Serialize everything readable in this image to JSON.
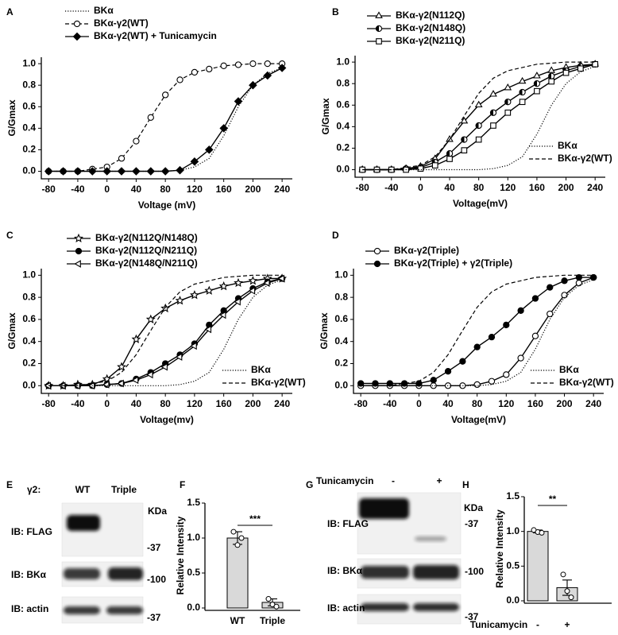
{
  "chart_data": [
    {
      "type": "line",
      "panel_label": "A",
      "ylabel": "G/Gmax",
      "xlabel": "Voltage (mV)",
      "x": [
        -80,
        -60,
        -40,
        -20,
        0,
        20,
        40,
        60,
        80,
        100,
        120,
        140,
        160,
        180,
        200,
        220,
        240
      ],
      "xlim": [
        -90,
        254
      ],
      "xticks": [
        -80,
        -40,
        0,
        40,
        80,
        120,
        160,
        200,
        240
      ],
      "ylim": [
        -0.07,
        1.06
      ],
      "yticks": [
        {
          "value": 0,
          "label": "0.0"
        },
        0.2,
        0.4,
        0.6,
        0.8,
        {
          "value": 1,
          "label": "1.0"
        }
      ],
      "series": [
        {
          "name": "BKα",
          "color": "#000000",
          "line": "dotted",
          "marker": "none",
          "legend": "top",
          "values": [
            0,
            0,
            0,
            0,
            0,
            0,
            0,
            0,
            0,
            0.01,
            0.04,
            0.12,
            0.33,
            0.6,
            0.8,
            0.91,
            0.96
          ]
        },
        {
          "name": "BKα-γ2(WT)",
          "color": "#000000",
          "line": "dashed",
          "marker": "circle-open",
          "legend": "top",
          "values": [
            0,
            0,
            0,
            0.02,
            0.04,
            0.12,
            0.28,
            0.5,
            0.71,
            0.85,
            0.92,
            0.95,
            0.98,
            0.99,
            1,
            1,
            1
          ]
        },
        {
          "name": "BKα-γ2(WT) + Tunicamycin",
          "color": "#000000",
          "line": "solid",
          "marker": "diamond-filled",
          "legend": "top",
          "values": [
            0,
            0,
            0,
            0,
            0,
            0,
            0,
            0,
            0,
            0.01,
            0.09,
            0.2,
            0.4,
            0.65,
            0.8,
            0.89,
            0.96
          ]
        }
      ]
    },
    {
      "type": "line",
      "panel_label": "B",
      "ylabel": "G/Gmax",
      "xlabel": "Voltage(mV)",
      "x": [
        -80,
        -60,
        -40,
        -20,
        0,
        20,
        40,
        60,
        80,
        100,
        120,
        140,
        160,
        180,
        200,
        220,
        240
      ],
      "xlim": [
        -90,
        254
      ],
      "xticks": [
        -80,
        -40,
        0,
        40,
        80,
        120,
        160,
        200,
        240
      ],
      "ylim": [
        -0.07,
        1.06
      ],
      "yticks": [
        {
          "value": 0,
          "label": "0.0"
        },
        0.2,
        0.4,
        0.6,
        0.8,
        {
          "value": 1,
          "label": "1.0"
        }
      ],
      "series": [
        {
          "name": "BKα-γ2(N112Q)",
          "color": "#000000",
          "line": "solid",
          "marker": "triangle-open",
          "legend": "top",
          "values": [
            0,
            0,
            0,
            0.01,
            0.03,
            0.1,
            0.28,
            0.45,
            0.6,
            0.7,
            0.76,
            0.82,
            0.87,
            0.92,
            0.95,
            0.97,
            0.98
          ]
        },
        {
          "name": "BKα-γ2(N148Q)",
          "color": "#000000",
          "line": "solid",
          "marker": "circle-half",
          "legend": "top",
          "values": [
            0,
            0,
            0,
            0.01,
            0.02,
            0.07,
            0.15,
            0.28,
            0.41,
            0.53,
            0.63,
            0.72,
            0.8,
            0.87,
            0.92,
            0.96,
            0.98
          ]
        },
        {
          "name": "BKα-γ2(N211Q)",
          "color": "#000000",
          "line": "solid",
          "marker": "square-open",
          "legend": "top",
          "values": [
            0,
            0,
            0,
            0,
            0.01,
            0.04,
            0.1,
            0.18,
            0.28,
            0.41,
            0.53,
            0.63,
            0.73,
            0.82,
            0.9,
            0.94,
            0.98
          ]
        },
        {
          "name": "BKα",
          "color": "#000000",
          "line": "dotted",
          "marker": "none",
          "legend": "lower right",
          "values": [
            0,
            0,
            0,
            0,
            0,
            0,
            0,
            0,
            0,
            0.01,
            0.04,
            0.12,
            0.33,
            0.6,
            0.8,
            0.91,
            0.96
          ]
        },
        {
          "name": "BKα-γ2(WT)",
          "color": "#000000",
          "line": "dashed",
          "marker": "none",
          "legend": "lower right",
          "values": [
            0,
            0,
            0,
            0.02,
            0.04,
            0.12,
            0.28,
            0.5,
            0.71,
            0.85,
            0.92,
            0.95,
            0.98,
            0.99,
            1,
            1,
            1
          ]
        }
      ]
    },
    {
      "type": "line",
      "panel_label": "C",
      "ylabel": "G/Gmax",
      "xlabel": "Voltage(mv)",
      "x": [
        -80,
        -60,
        -40,
        -20,
        0,
        20,
        40,
        60,
        80,
        100,
        120,
        140,
        160,
        180,
        200,
        220,
        240
      ],
      "xlim": [
        -90,
        254
      ],
      "xticks": [
        -80,
        -40,
        0,
        40,
        80,
        120,
        160,
        200,
        240
      ],
      "ylim": [
        -0.07,
        1.06
      ],
      "yticks": [
        {
          "value": 0,
          "label": "0.0"
        },
        0.2,
        0.4,
        0.6,
        0.8,
        {
          "value": 1,
          "label": "1.0"
        }
      ],
      "series": [
        {
          "name": "BKα-γ2(N112Q/N148Q)",
          "color": "#000000",
          "line": "solid",
          "marker": "star-open",
          "legend": "top",
          "values": [
            0,
            0,
            0.01,
            0.01,
            0.06,
            0.17,
            0.42,
            0.6,
            0.7,
            0.77,
            0.82,
            0.86,
            0.9,
            0.93,
            0.95,
            0.97,
            0.97
          ]
        },
        {
          "name": "BKα-γ2(N112Q/N211Q)",
          "color": "#000000",
          "line": "solid",
          "marker": "circle-filled",
          "legend": "top",
          "values": [
            0,
            0,
            0,
            0,
            0.01,
            0.02,
            0.06,
            0.12,
            0.2,
            0.28,
            0.38,
            0.55,
            0.68,
            0.79,
            0.88,
            0.94,
            0.97
          ]
        },
        {
          "name": "BKα-γ2(N148Q/N211Q)",
          "color": "#000000",
          "line": "solid",
          "marker": "triangle-left-open",
          "legend": "top",
          "values": [
            0,
            0,
            0,
            0,
            0.01,
            0.02,
            0.05,
            0.1,
            0.17,
            0.26,
            0.36,
            0.51,
            0.64,
            0.76,
            0.86,
            0.93,
            0.97
          ]
        },
        {
          "name": "BKα",
          "color": "#000000",
          "line": "dotted",
          "marker": "none",
          "legend": "lower right",
          "values": [
            0,
            0,
            0,
            0,
            0,
            0,
            0,
            0,
            0,
            0.01,
            0.04,
            0.12,
            0.33,
            0.6,
            0.8,
            0.91,
            0.96
          ]
        },
        {
          "name": "BKα-γ2(WT)",
          "color": "#000000",
          "line": "dashed",
          "marker": "none",
          "legend": "lower right",
          "values": [
            0,
            0,
            0,
            0.02,
            0.04,
            0.12,
            0.28,
            0.5,
            0.71,
            0.85,
            0.92,
            0.95,
            0.98,
            0.99,
            1,
            1,
            1
          ]
        }
      ]
    },
    {
      "type": "line",
      "panel_label": "D",
      "ylabel": "G/Gmax",
      "xlabel": "Voltage(mV)",
      "x": [
        -80,
        -60,
        -40,
        -20,
        0,
        20,
        40,
        60,
        80,
        100,
        120,
        140,
        160,
        180,
        200,
        220,
        240
      ],
      "xlim": [
        -90,
        254
      ],
      "xticks": [
        -80,
        -40,
        0,
        40,
        80,
        120,
        160,
        200,
        240
      ],
      "ylim": [
        -0.07,
        1.06
      ],
      "yticks": [
        {
          "value": 0,
          "label": "0.0"
        },
        0.2,
        0.4,
        0.6,
        0.8,
        {
          "value": 1,
          "label": "1.0"
        }
      ],
      "series": [
        {
          "name": "BKα-γ2(Triple)",
          "color": "#000000",
          "line": "solid",
          "marker": "circle-open",
          "legend": "top",
          "values": [
            0,
            0,
            0,
            0,
            0,
            0,
            0,
            0,
            0.01,
            0.04,
            0.1,
            0.25,
            0.45,
            0.65,
            0.82,
            0.93,
            0.98
          ]
        },
        {
          "name": "BKα-γ2(Triple) + γ2(Triple)",
          "color": "#000000",
          "line": "solid",
          "marker": "circle-filled",
          "legend": "top",
          "values": [
            0.02,
            0.02,
            0.02,
            0.02,
            0.02,
            0.05,
            0.13,
            0.22,
            0.35,
            0.44,
            0.55,
            0.68,
            0.79,
            0.89,
            0.95,
            0.98,
            0.98
          ]
        },
        {
          "name": "BKα",
          "color": "#000000",
          "line": "dotted",
          "marker": "none",
          "legend": "lower right",
          "values": [
            0,
            0,
            0,
            0,
            0,
            0,
            0,
            0,
            0,
            0.01,
            0.04,
            0.12,
            0.33,
            0.6,
            0.8,
            0.91,
            0.96
          ]
        },
        {
          "name": "BKα-γ2(WT)",
          "color": "#000000",
          "line": "dashed",
          "marker": "none",
          "legend": "lower right",
          "values": [
            0,
            0,
            0,
            0.02,
            0.04,
            0.12,
            0.28,
            0.5,
            0.71,
            0.85,
            0.92,
            0.95,
            0.98,
            0.99,
            1,
            1,
            1
          ]
        }
      ]
    },
    {
      "type": "bar",
      "panel_label": "F",
      "ylabel": "Relative Intensity",
      "categories": [
        "WT",
        "Triple"
      ],
      "values": [
        1.0,
        0.08
      ],
      "errors": [
        0.09,
        0.05
      ],
      "points": [
        [
          1.09,
          0.9,
          1.0
        ],
        [
          0.13,
          0.05,
          0.02
        ]
      ],
      "color": "#d9d9d9",
      "ylim": [
        0,
        1.5
      ],
      "yticks": [
        {
          "value": 0,
          "label": "0.0"
        },
        0.5,
        {
          "value": 1,
          "label": "1.0"
        },
        1.5
      ],
      "significance": "***"
    },
    {
      "type": "bar",
      "panel_label": "H",
      "ylabel": "Relative Intensity",
      "xlabel": "Tunicamycin",
      "categories": [
        "-",
        "+"
      ],
      "values": [
        1.0,
        0.19
      ],
      "errors": [
        0.02,
        0.11
      ],
      "points": [
        [
          1.02,
          0.99,
          0.98
        ],
        [
          0.38,
          0.14,
          0.05
        ]
      ],
      "color": "#d9d9d9",
      "ylim": [
        0,
        1.5
      ],
      "yticks": [
        {
          "value": 0,
          "label": "0.0"
        },
        0.5,
        {
          "value": 1,
          "label": "1.0"
        },
        1.5
      ],
      "significance": "**"
    }
  ],
  "blots": [
    {
      "panel_label": "E",
      "header_label": "γ2:",
      "lanes": [
        "WT",
        "Triple"
      ],
      "unit": "KDa",
      "rows": [
        {
          "label": "IB: FLAG",
          "marker": "-37"
        },
        {
          "label": "IB: BKα",
          "marker": "-100"
        },
        {
          "label": "IB: actin",
          "marker": "-37"
        }
      ]
    },
    {
      "panel_label": "G",
      "header_label": "Tunicamycin",
      "lanes": [
        "-",
        "+"
      ],
      "unit": "KDa",
      "rows": [
        {
          "label": "IB: FLAG",
          "marker": "-37"
        },
        {
          "label": "IB: BKα",
          "marker": "-100"
        },
        {
          "label": "IB: actin",
          "marker": "-37"
        }
      ]
    }
  ]
}
